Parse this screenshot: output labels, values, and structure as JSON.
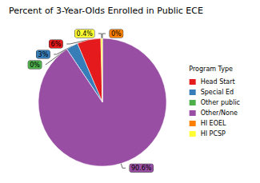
{
  "chart_data": {
    "type": "pie",
    "title": "Percent of 3-Year-Olds Enrolled in Public ECE",
    "legend_title": "Program Type",
    "categories": [
      "Head Start",
      "Special Ed",
      "Other public",
      "Other/None",
      "HI EOEL",
      "HI PCSP"
    ],
    "values": [
      6,
      3,
      0,
      90.6,
      0,
      0.4
    ],
    "value_labels": [
      "6%",
      "3%",
      "0%",
      "90.6%",
      "0%",
      "0.4%"
    ],
    "colors": [
      "#e41a1c",
      "#377eb8",
      "#4daf4a",
      "#984ea3",
      "#ff7f00",
      "#ffff33"
    ],
    "data_labels": true,
    "legend": "right"
  }
}
